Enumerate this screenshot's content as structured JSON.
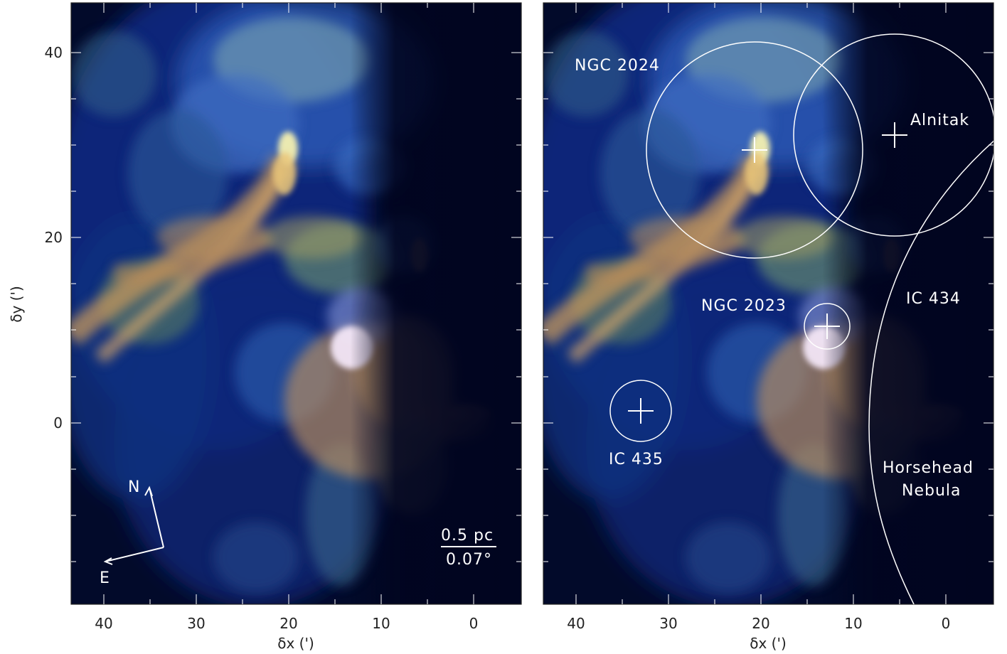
{
  "figure": {
    "left_panel": {
      "xlabel": "δx (')",
      "ylabel": "δy (')",
      "x_ticks": [
        "40",
        "30",
        "20",
        "10",
        "0"
      ],
      "y_ticks": [
        "40",
        "20",
        "0"
      ],
      "compass": {
        "north": "N",
        "east": "E"
      },
      "scale_bar": {
        "physical": "0.5 pc",
        "angular": "0.07°"
      }
    },
    "right_panel": {
      "xlabel": "δx (')",
      "x_ticks": [
        "40",
        "30",
        "20",
        "10",
        "0"
      ],
      "annotations": {
        "ngc2024": "NGC 2024",
        "alnitak": "Alnitak",
        "ic434": "IC 434",
        "ngc2023": "NGC 2023",
        "ic435": "IC 435",
        "horsehead_line1": "Horsehead",
        "horsehead_line2": "Nebula"
      }
    }
  },
  "colors": {
    "background": "#020a2a",
    "deep_blue": "#0a1e6e",
    "gas_blue": "#3a6fc8",
    "gas_green": "#7fb36a",
    "gas_orange": "#d9a05a",
    "overlay": "#ffffff"
  }
}
